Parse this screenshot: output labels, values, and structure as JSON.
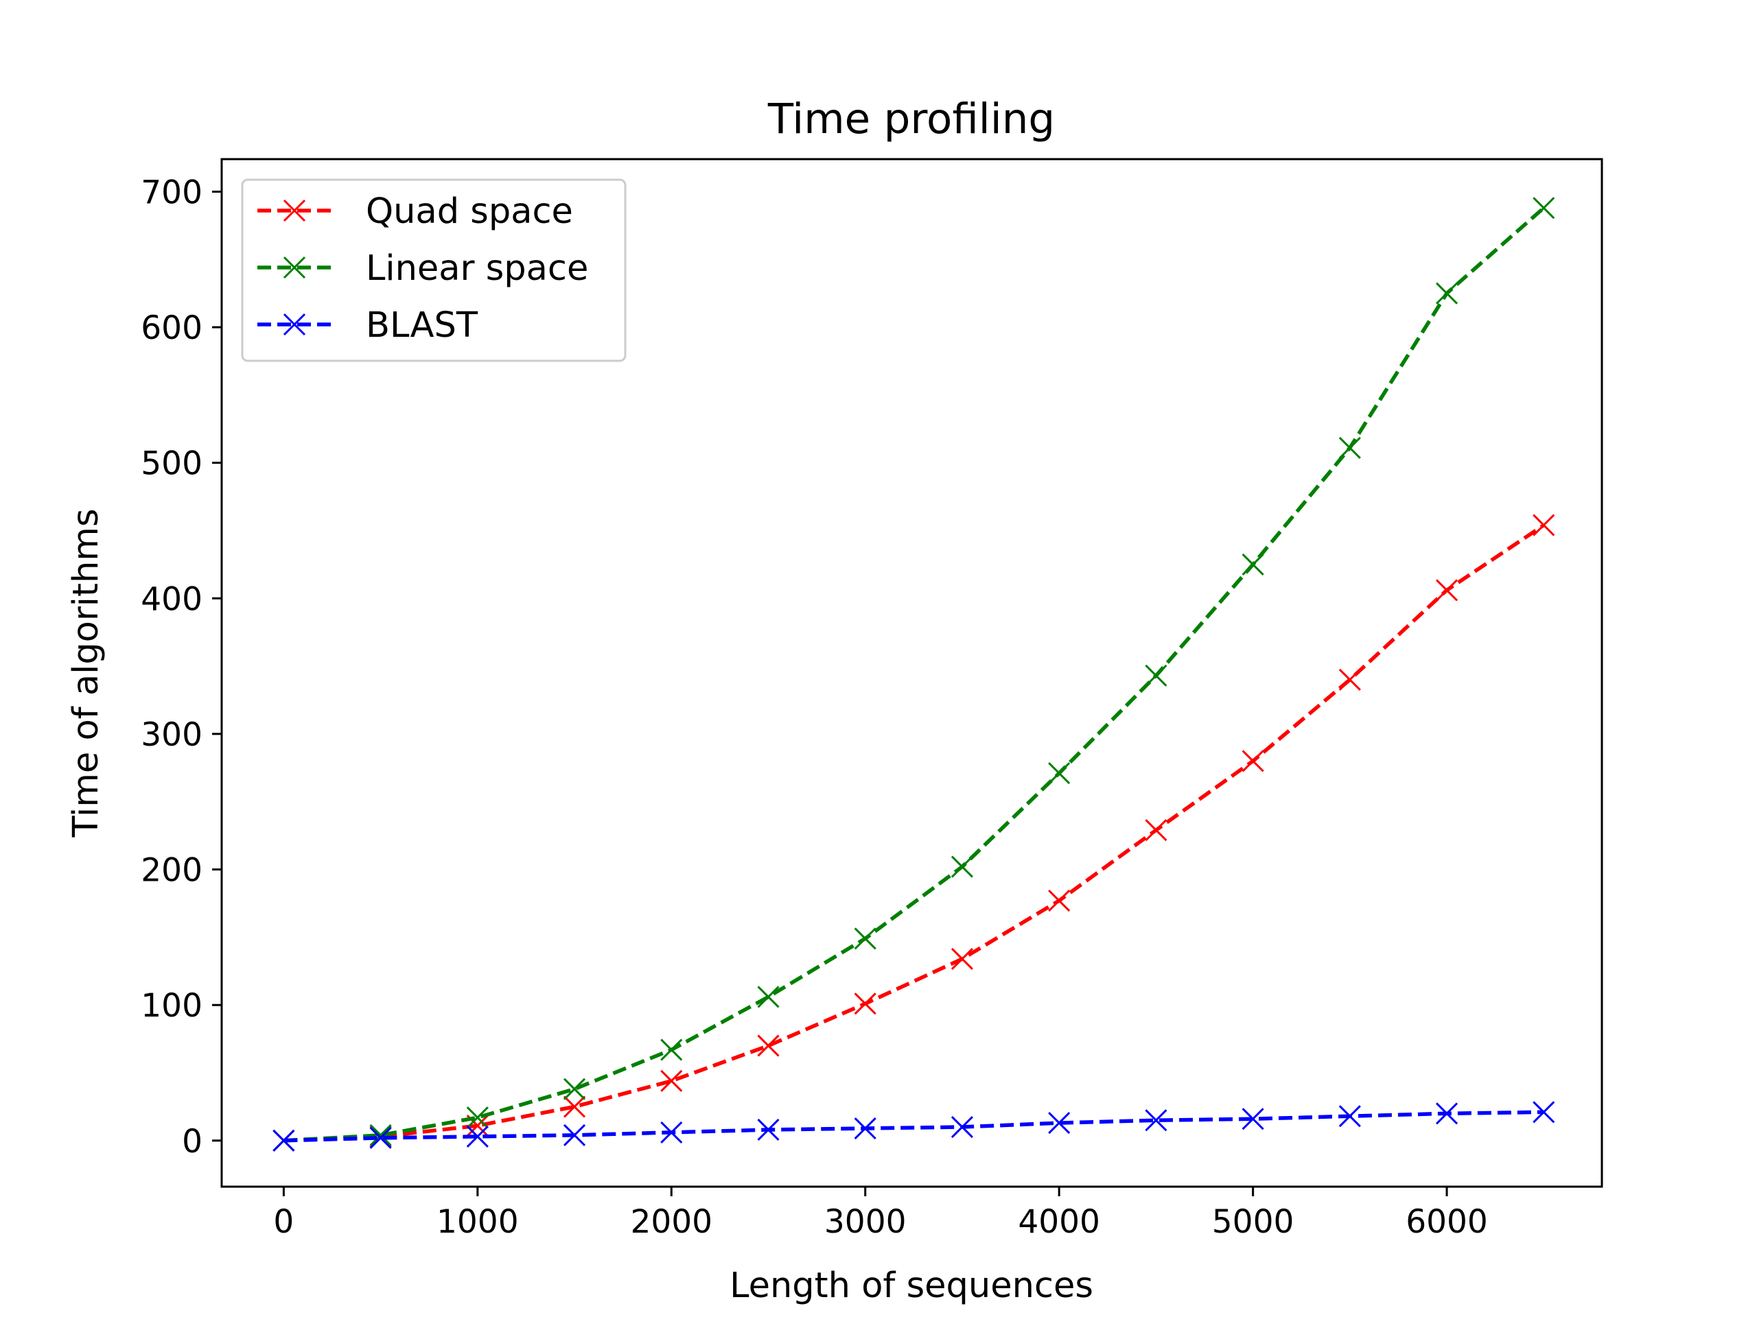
{
  "chart_data": {
    "type": "line",
    "title": "Time profiling",
    "xlabel": "Length of sequences",
    "ylabel": "Time of algorithms",
    "xlim": [
      -320,
      6800
    ],
    "ylim": [
      -34,
      724
    ],
    "xticks": [
      0,
      1000,
      2000,
      3000,
      4000,
      5000,
      6000
    ],
    "yticks": [
      0,
      100,
      200,
      300,
      400,
      500,
      600,
      700
    ],
    "x": [
      0,
      500,
      1000,
      1500,
      2000,
      2500,
      3000,
      3500,
      4000,
      4500,
      5000,
      5500,
      6000,
      6500
    ],
    "series": [
      {
        "name": "Quad space",
        "color": "#ff0000",
        "marker": "x",
        "linestyle": "dashed",
        "values": [
          0,
          3,
          11,
          25,
          44,
          70,
          101,
          134,
          177,
          229,
          280,
          340,
          406,
          454
        ]
      },
      {
        "name": "Linear space",
        "color": "#008000",
        "marker": "x",
        "linestyle": "dashed",
        "values": [
          0,
          4,
          17,
          38,
          67,
          106,
          149,
          202,
          271,
          343,
          425,
          511,
          625,
          688
        ]
      },
      {
        "name": "BLAST",
        "color": "#0000ff",
        "marker": "x",
        "linestyle": "dashed",
        "values": [
          0,
          2,
          3,
          4,
          6,
          8,
          9,
          10,
          13,
          15,
          16,
          18,
          20,
          21
        ]
      }
    ],
    "legend_position": "upper-left",
    "grid": false
  }
}
